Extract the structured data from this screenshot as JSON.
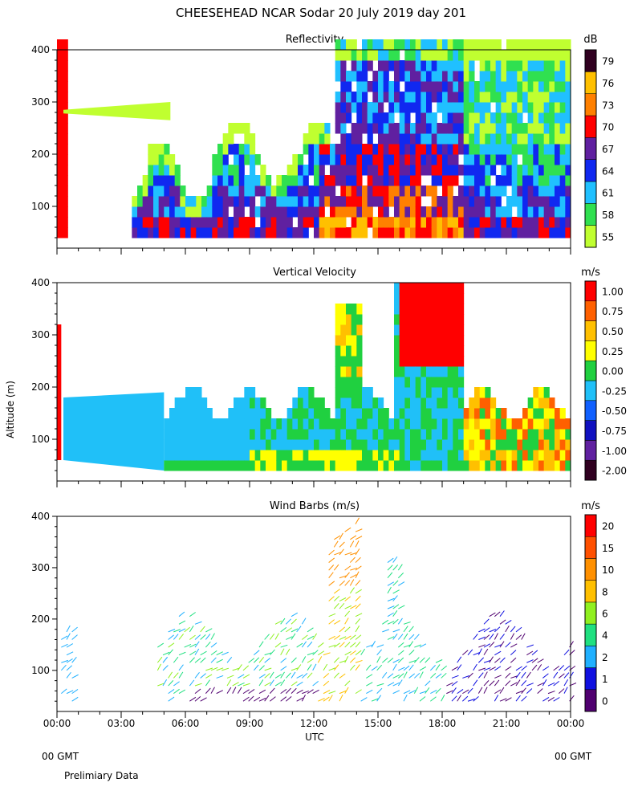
{
  "page": {
    "title": "CHEESEHEAD  NCAR Sodar  20 July 2019  day 201",
    "y_axis_label": "Altitude (m)",
    "x_axis_label": "UTC",
    "footer_left": "00 GMT",
    "footer_right": "00 GMT",
    "note": "Prelimiary Data"
  },
  "chart_data": [
    {
      "type": "heatmap",
      "title": "Reflectivity",
      "units": "dB",
      "x_ticks": [
        "00:00",
        "03:00",
        "06:00",
        "09:00",
        "12:00",
        "15:00",
        "18:00",
        "21:00",
        "00:00"
      ],
      "y_ticks": [
        100,
        200,
        300,
        400
      ],
      "ylim": [
        20,
        400
      ],
      "xlim_hours": [
        0,
        24
      ],
      "legend_levels": [
        "55",
        "58",
        "61",
        "64",
        "67",
        "70",
        "73",
        "76",
        "79"
      ],
      "legend_colors": [
        "#c0ff30",
        "#30e050",
        "#20c0ff",
        "#1028f0",
        "#6020a0",
        "#ff0000",
        "#ff8000",
        "#ffc000",
        "#300020"
      ]
    },
    {
      "type": "heatmap",
      "title": "Vertical Velocity",
      "units": "m/s",
      "x_ticks": [
        "00:00",
        "03:00",
        "06:00",
        "09:00",
        "12:00",
        "15:00",
        "18:00",
        "21:00",
        "00:00"
      ],
      "y_ticks": [
        100,
        200,
        300,
        400
      ],
      "ylim": [
        20,
        400
      ],
      "xlim_hours": [
        0,
        24
      ],
      "legend_levels": [
        "-2.00",
        "-1.00",
        "-0.75",
        "-0.50",
        "-0.25",
        "0.00",
        "0.25",
        "0.50",
        "0.75",
        "1.00"
      ],
      "legend_colors": [
        "#300020",
        "#6020a0",
        "#1010c0",
        "#1060ff",
        "#20c0f8",
        "#20d040",
        "#ffff00",
        "#ffc000",
        "#ff6000",
        "#ff0000"
      ]
    },
    {
      "type": "scatter",
      "title": "Wind Barbs (m/s)",
      "units": "m/s",
      "x_ticks": [
        "00:00",
        "03:00",
        "06:00",
        "09:00",
        "12:00",
        "15:00",
        "18:00",
        "21:00",
        "00:00"
      ],
      "y_ticks": [
        100,
        200,
        300,
        400
      ],
      "ylim": [
        20,
        400
      ],
      "xlim_hours": [
        0,
        24
      ],
      "legend_levels": [
        "0",
        "1",
        "2",
        "4",
        "6",
        "8",
        "10",
        "15",
        "20"
      ],
      "legend_colors": [
        "#500070",
        "#1010e0",
        "#20b0ff",
        "#20e080",
        "#90f020",
        "#ffc000",
        "#ff9000",
        "#ff5000",
        "#ff0000"
      ]
    }
  ]
}
